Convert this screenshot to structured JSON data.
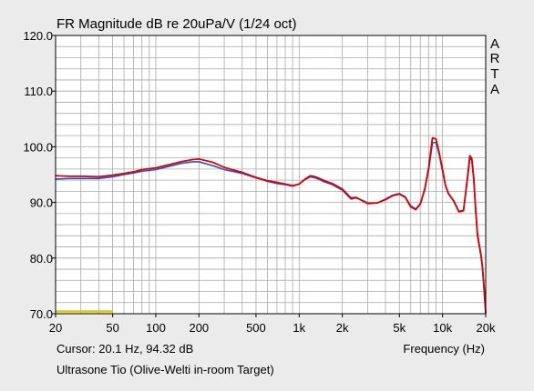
{
  "chart_data": {
    "type": "line",
    "title": "FR Magnitude dB re 20uPa/V (1/24 oct)",
    "brand_letters": [
      "A",
      "R",
      "T",
      "A"
    ],
    "xlabel": "Frequency (Hz)",
    "ylabel": "",
    "x_scale": "log",
    "xlim": [
      20,
      20000
    ],
    "ylim": [
      70,
      120
    ],
    "x_ticks": [
      20,
      50,
      100,
      200,
      500,
      1000,
      2000,
      5000,
      10000,
      20000
    ],
    "x_tick_labels": [
      "20",
      "50",
      "100",
      "200",
      "500",
      "1k",
      "2k",
      "5k",
      "10k",
      "20k"
    ],
    "y_ticks": [
      70,
      80,
      90,
      100,
      110,
      120
    ],
    "y_tick_labels": [
      "70.0",
      "80.0",
      "90.0",
      "100.0",
      "110.0",
      "120.0"
    ],
    "grid": true,
    "cursor_text": "Cursor: 20.1 Hz, 94.32 dB",
    "caption": "Ultrasone Tio (Olive-Welti in-room Target)",
    "colors": {
      "background": "#ebebeb",
      "plot_background": "#ffffff",
      "grid": "#a8a8a8",
      "series_red": "#e00000",
      "series_blue": "#1f4fd6",
      "marker": "#e6c800"
    },
    "marker_band": {
      "x_range": [
        20,
        50
      ],
      "y": 70.4
    },
    "series": [
      {
        "color": "#1f4fd6",
        "x": [
          20,
          25,
          30,
          40,
          50,
          60,
          70,
          80,
          100,
          120,
          150,
          180,
          200,
          250,
          300,
          400,
          500,
          600,
          700,
          800,
          900,
          1000,
          1100,
          1200,
          1300,
          1500,
          1700,
          2000,
          2300,
          2500,
          2800,
          3000,
          3500,
          4000,
          4500,
          5000,
          5500,
          6000,
          6500,
          7000,
          7500,
          8000,
          8500,
          9000,
          9500,
          10000,
          10500,
          11000,
          12000,
          13000,
          14000,
          15000,
          15500,
          16000,
          16500,
          17000,
          17500,
          18000,
          18500,
          19000,
          19500,
          20000
        ],
        "values": [
          94.2,
          94.3,
          94.3,
          94.3,
          94.6,
          95.0,
          95.3,
          95.6,
          95.9,
          96.4,
          97.0,
          97.3,
          97.3,
          96.6,
          95.9,
          95.2,
          94.4,
          93.8,
          93.4,
          93.2,
          92.9,
          93.3,
          94.1,
          94.6,
          94.4,
          93.7,
          93.2,
          92.2,
          90.6,
          90.8,
          90.3,
          89.9,
          89.9,
          90.6,
          91.3,
          91.6,
          91.0,
          89.4,
          88.8,
          89.8,
          92.2,
          95.8,
          100.7,
          100.8,
          98.5,
          95.6,
          92.9,
          91.5,
          90.3,
          88.4,
          88.6,
          94.5,
          98.0,
          97.5,
          94.0,
          88.6,
          84.0,
          82.2,
          80.5,
          78.0,
          74.0,
          70.1
        ]
      },
      {
        "color": "#e00000",
        "x": [
          20,
          25,
          30,
          40,
          50,
          60,
          70,
          80,
          100,
          120,
          150,
          180,
          200,
          250,
          300,
          400,
          500,
          600,
          700,
          800,
          900,
          1000,
          1100,
          1200,
          1300,
          1500,
          1700,
          2000,
          2300,
          2500,
          2800,
          3000,
          3500,
          4000,
          4500,
          5000,
          5500,
          6000,
          6500,
          7000,
          7500,
          8000,
          8500,
          9000,
          9500,
          10000,
          10500,
          11000,
          12000,
          13000,
          14000,
          15000,
          15500,
          16000,
          16500,
          17000,
          17500,
          18000,
          18500,
          19000,
          19500,
          20000
        ],
        "values": [
          94.8,
          94.7,
          94.7,
          94.6,
          94.9,
          95.2,
          95.5,
          95.9,
          96.2,
          96.7,
          97.3,
          97.7,
          97.8,
          97.2,
          96.3,
          95.4,
          94.5,
          93.9,
          93.6,
          93.3,
          93.0,
          93.3,
          94.2,
          94.8,
          94.6,
          93.9,
          93.4,
          92.4,
          90.8,
          90.9,
          90.2,
          89.8,
          89.9,
          90.5,
          91.2,
          91.5,
          90.9,
          89.2,
          88.7,
          89.7,
          92.3,
          96.2,
          101.6,
          101.4,
          98.8,
          95.9,
          93.0,
          91.6,
          90.2,
          88.3,
          88.5,
          95.0,
          98.4,
          97.9,
          94.5,
          89.0,
          84.5,
          82.5,
          80.8,
          78.4,
          74.6,
          70.2
        ]
      }
    ]
  }
}
